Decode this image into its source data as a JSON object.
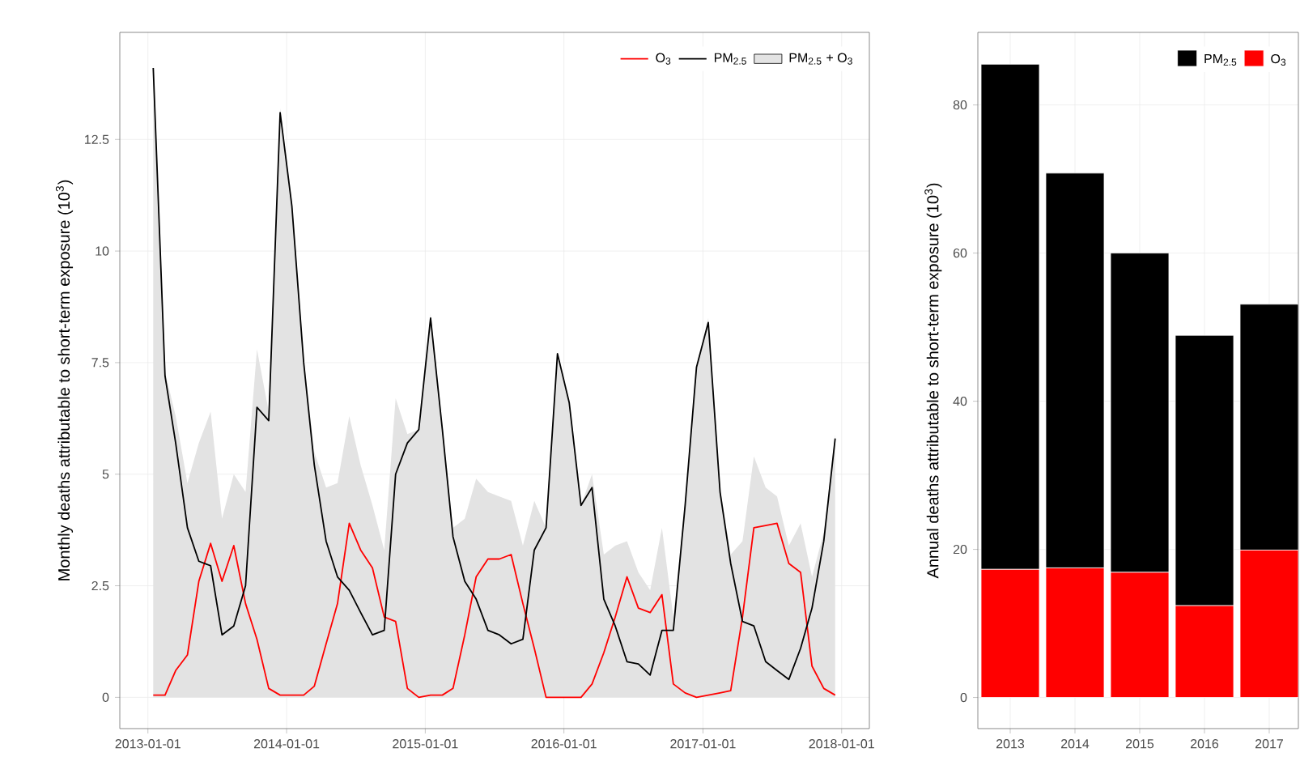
{
  "chart_data": [
    {
      "type": "line",
      "ylabel": "Monthly deaths attributable to short-term exposure (10$^{3}$)",
      "x": [
        "2013-01-15",
        "2013-02-15",
        "2013-03-15",
        "2013-04-15",
        "2013-05-15",
        "2013-06-15",
        "2013-07-15",
        "2013-08-15",
        "2013-09-15",
        "2013-10-15",
        "2013-11-15",
        "2013-12-15",
        "2014-01-15",
        "2014-02-15",
        "2014-03-15",
        "2014-04-15",
        "2014-05-15",
        "2014-06-15",
        "2014-07-15",
        "2014-08-15",
        "2014-09-15",
        "2014-10-15",
        "2014-11-15",
        "2014-12-15",
        "2015-01-15",
        "2015-02-15",
        "2015-03-15",
        "2015-04-15",
        "2015-05-15",
        "2015-06-15",
        "2015-07-15",
        "2015-08-15",
        "2015-09-15",
        "2015-10-15",
        "2015-11-15",
        "2015-12-15",
        "2016-01-15",
        "2016-02-15",
        "2016-03-15",
        "2016-04-15",
        "2016-05-15",
        "2016-06-15",
        "2016-07-15",
        "2016-08-15",
        "2016-09-15",
        "2016-10-15",
        "2016-11-15",
        "2016-12-15",
        "2017-01-15",
        "2017-02-15",
        "2017-03-15",
        "2017-04-15",
        "2017-05-15",
        "2017-06-15",
        "2017-07-15",
        "2017-08-15",
        "2017-09-15",
        "2017-10-15",
        "2017-11-15",
        "2017-12-15"
      ],
      "series": [
        {
          "name": "PM$_{2.5}$ + O$_{3}$",
          "type": "area",
          "color": "#e3e3e3",
          "values": [
            14.2,
            7.3,
            6.3,
            4.8,
            5.7,
            6.4,
            4.0,
            5.0,
            4.6,
            7.8,
            6.4,
            13.2,
            11.1,
            7.6,
            5.5,
            4.7,
            4.8,
            6.3,
            5.2,
            4.3,
            3.3,
            6.7,
            5.9,
            6.0,
            8.6,
            6.1,
            3.8,
            4.0,
            4.9,
            4.6,
            4.5,
            4.4,
            3.4,
            4.4,
            3.8,
            7.7,
            6.6,
            4.3,
            5.0,
            3.2,
            3.4,
            3.5,
            2.8,
            2.4,
            3.8,
            1.8,
            4.4,
            7.4,
            8.5,
            4.7,
            3.2,
            3.5,
            5.4,
            4.7,
            4.5,
            3.4,
            3.9,
            2.7,
            3.7,
            5.9
          ]
        },
        {
          "name": "O$_{3}$",
          "color": "#ff0000",
          "values": [
            0.05,
            0.05,
            0.6,
            0.95,
            2.6,
            3.45,
            2.6,
            3.4,
            2.1,
            1.3,
            0.2,
            0.05,
            0.05,
            0.05,
            0.25,
            1.2,
            2.1,
            3.9,
            3.3,
            2.9,
            1.8,
            1.7,
            0.2,
            0.0,
            0.05,
            0.05,
            0.2,
            1.4,
            2.7,
            3.1,
            3.1,
            3.2,
            2.1,
            1.1,
            0.0,
            0.0,
            0.0,
            0.0,
            0.3,
            1.0,
            1.8,
            2.7,
            2.0,
            1.9,
            2.3,
            0.3,
            0.1,
            0.0,
            0.05,
            0.1,
            0.15,
            1.8,
            3.8,
            3.85,
            3.9,
            3.0,
            2.8,
            0.7,
            0.2,
            0.05
          ]
        },
        {
          "name": "PM$_{2.5}$",
          "color": "#000000",
          "values": [
            14.1,
            7.2,
            5.7,
            3.8,
            3.05,
            2.95,
            1.4,
            1.6,
            2.5,
            6.5,
            6.2,
            13.1,
            11.0,
            7.5,
            5.2,
            3.5,
            2.7,
            2.4,
            1.9,
            1.4,
            1.5,
            5.0,
            5.7,
            6.0,
            8.5,
            6.0,
            3.6,
            2.6,
            2.2,
            1.5,
            1.4,
            1.2,
            1.3,
            3.3,
            3.8,
            7.7,
            6.6,
            4.3,
            4.7,
            2.2,
            1.6,
            0.8,
            0.75,
            0.5,
            1.5,
            1.5,
            4.3,
            7.4,
            8.4,
            4.6,
            3.0,
            1.7,
            1.6,
            0.8,
            0.6,
            0.4,
            1.1,
            2.0,
            3.5,
            5.8
          ]
        }
      ],
      "xlim": [
        "2012-10-19",
        "2018-03-15"
      ],
      "ylim": [
        -0.7,
        14.9
      ],
      "xticks": [
        "2013-01-01",
        "2014-01-01",
        "2015-01-01",
        "2016-01-01",
        "2017-01-01",
        "2018-01-01"
      ],
      "yticks": [
        0,
        2.5,
        5,
        7.5,
        10,
        12.5
      ],
      "grid": true,
      "legend": "top right"
    },
    {
      "type": "bar",
      "stacked": true,
      "ylabel": "Annual deaths attributable to short-term exposure (10$^{3}$)",
      "categories": [
        "2013",
        "2014",
        "2015",
        "2016",
        "2017"
      ],
      "series": [
        {
          "name": "O$_{3}$",
          "color": "#ff0000",
          "values": [
            17.3,
            17.5,
            16.9,
            12.4,
            19.9
          ]
        },
        {
          "name": "PM$_{2.5}$",
          "color": "#000000",
          "values": [
            68.2,
            53.3,
            43.1,
            36.5,
            33.2
          ]
        }
      ],
      "ylim": [
        -4.2,
        89.8
      ],
      "yticks": [
        0,
        20,
        40,
        60,
        80
      ],
      "grid": true,
      "legend": "top right"
    }
  ]
}
